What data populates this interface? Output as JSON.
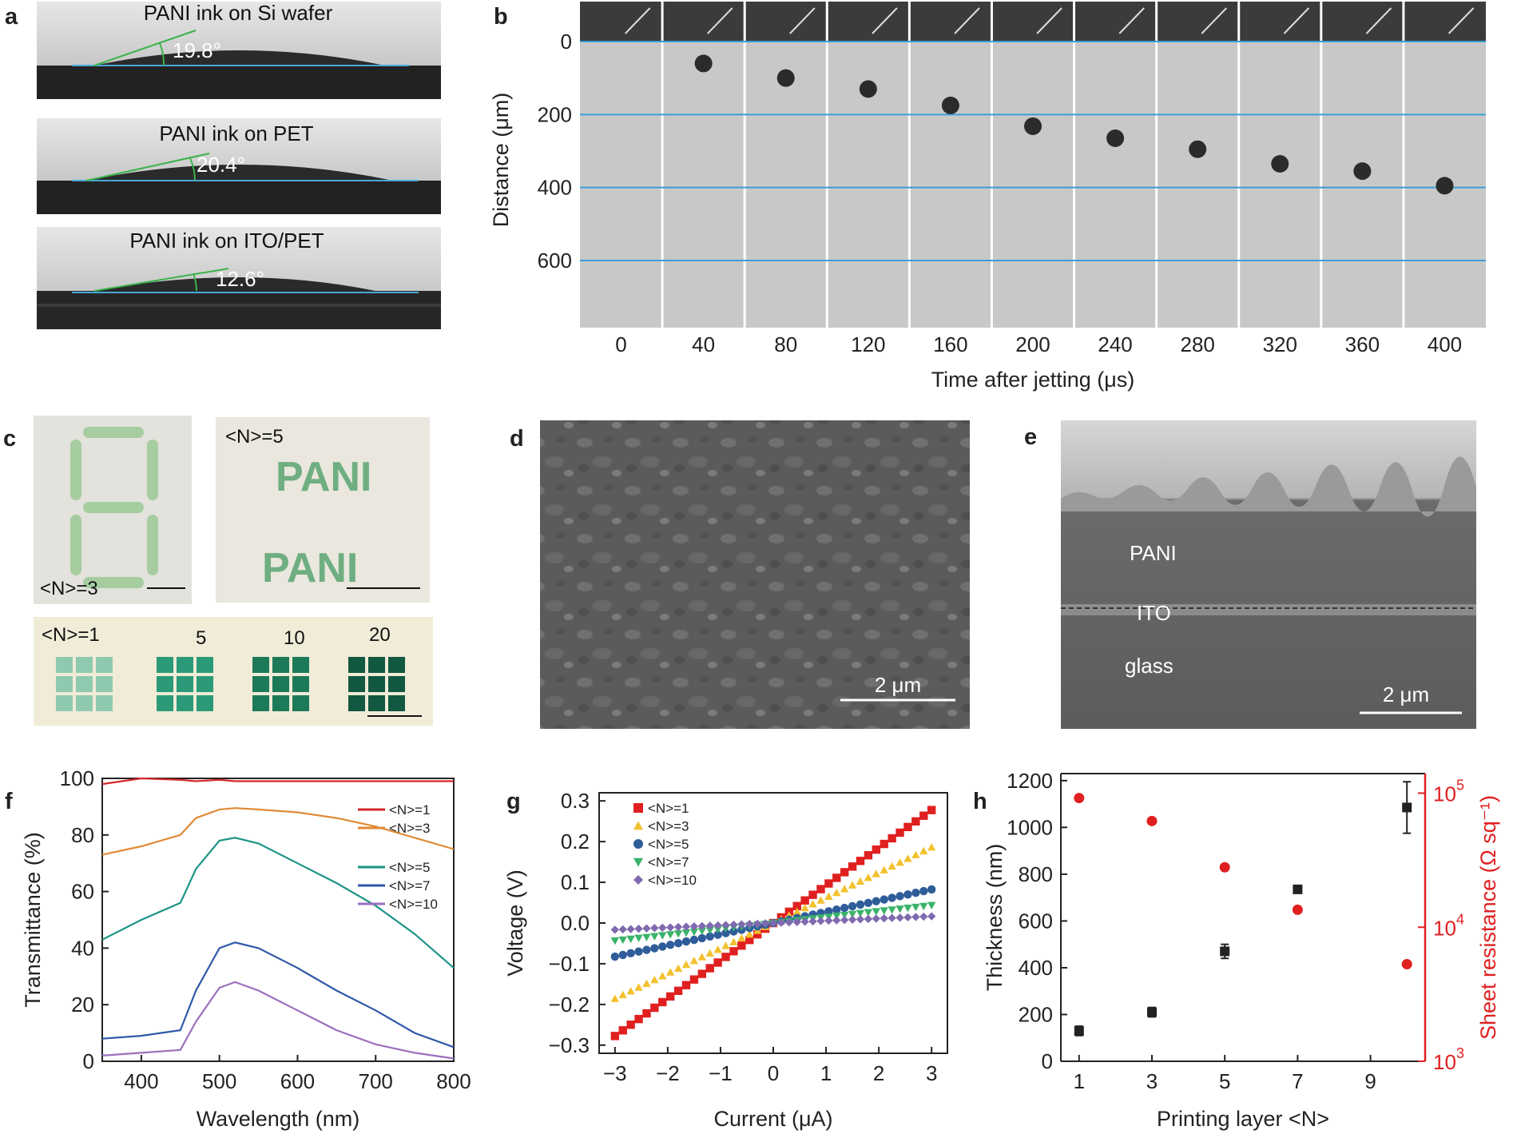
{
  "panel_letters": [
    "a",
    "b",
    "c",
    "d",
    "e",
    "f",
    "g",
    "h"
  ],
  "panel_a": {
    "images": [
      {
        "title": "PANI ink on Si wafer",
        "angle": "19.8°"
      },
      {
        "title": "PANI ink on PET",
        "angle": "20.4°"
      },
      {
        "title": "PANI ink on ITO/PET",
        "angle": "12.6°"
      }
    ]
  },
  "panel_c": {
    "labels": {
      "n3": "<N>=3",
      "n5": "<N>=5",
      "pani_text": "PANI",
      "n1": "<N>=1",
      "n_values": [
        "5",
        "10",
        "20"
      ]
    }
  },
  "panel_d": {
    "scale_bar": "2 μm"
  },
  "panel_e": {
    "layers": [
      "PANI",
      "ITO",
      "glass"
    ],
    "scale_bar": "2 μm"
  },
  "chart_data": [
    {
      "panel": "b",
      "type": "scatter",
      "xlabel": "Time after jetting (μs)",
      "ylabel": "Distance (μm)",
      "x_ticks": [
        "0",
        "40",
        "80",
        "120",
        "160",
        "200",
        "240",
        "280",
        "320",
        "360",
        "400"
      ],
      "y_ticks": [
        "0",
        "200",
        "400",
        "600"
      ],
      "x": [
        40,
        80,
        120,
        160,
        200,
        240,
        280,
        320,
        360,
        400
      ],
      "y": [
        60,
        100,
        130,
        175,
        232,
        265,
        295,
        335,
        355,
        395
      ]
    },
    {
      "panel": "f",
      "type": "line",
      "xlabel": "Wavelength (nm)",
      "ylabel": "Transmittance (%)",
      "xlim": [
        350,
        800
      ],
      "ylim": [
        0,
        100
      ],
      "x_ticks": [
        "400",
        "500",
        "600",
        "700",
        "800"
      ],
      "y_ticks": [
        "0",
        "20",
        "40",
        "60",
        "80",
        "100"
      ],
      "x": [
        350,
        400,
        450,
        470,
        500,
        520,
        550,
        600,
        650,
        700,
        750,
        800
      ],
      "series": [
        {
          "name": "<N>=1",
          "color": "#d62728",
          "values": [
            98,
            100,
            99.5,
            99,
            99.5,
            99,
            99,
            99,
            99,
            99,
            99,
            99
          ]
        },
        {
          "name": "<N>=3",
          "color": "#e08a35",
          "values": [
            73,
            76,
            80,
            86,
            89,
            89.5,
            89,
            88,
            86,
            83,
            79,
            75
          ]
        },
        {
          "name": "<N>=5",
          "color": "#1c9485",
          "values": [
            43,
            50,
            56,
            68,
            78,
            79,
            77,
            70,
            63,
            55,
            45,
            33
          ]
        },
        {
          "name": "<N>=7",
          "color": "#2e59a8",
          "values": [
            8,
            9,
            11,
            25,
            40,
            42,
            40,
            33,
            25,
            18,
            10,
            5
          ]
        },
        {
          "name": "<N>=10",
          "color": "#9b6fbe",
          "values": [
            2,
            3,
            4,
            14,
            26,
            28,
            25,
            18,
            11,
            6,
            3,
            1
          ]
        }
      ]
    },
    {
      "panel": "g",
      "type": "scatter",
      "xlabel": "Current (μA)",
      "ylabel": "Voltage (V)",
      "xlim": [
        -3.3,
        3.3
      ],
      "ylim": [
        -0.32,
        0.32
      ],
      "x_ticks": [
        "−3",
        "−2",
        "−1",
        "0",
        "1",
        "2",
        "3"
      ],
      "y_ticks": [
        "−0.3",
        "−0.2",
        "−0.1",
        "0.0",
        "0.1",
        "0.2",
        "0.3"
      ],
      "series": [
        {
          "name": "<N>=1",
          "color": "#e02020",
          "marker": "square",
          "slope": 0.0925
        },
        {
          "name": "<N>=3",
          "color": "#f2c12e",
          "marker": "triangle-up",
          "slope": 0.062
        },
        {
          "name": "<N>=5",
          "color": "#2f5d9a",
          "marker": "circle",
          "slope": 0.0275
        },
        {
          "name": "<N>=7",
          "color": "#3bb36a",
          "marker": "triangle-down",
          "slope": 0.0145
        },
        {
          "name": "<N>=10",
          "color": "#7f6ab0",
          "marker": "diamond",
          "slope": 0.0055
        }
      ]
    },
    {
      "panel": "h",
      "type": "scatter",
      "xlabel": "Printing layer <N>",
      "ylabel": "Thickness (nm)",
      "y2label": "Sheet resistance (Ω sq⁻¹)",
      "x_ticks": [
        "1",
        "3",
        "5",
        "7",
        "9"
      ],
      "y_ticks": [
        "0",
        "200",
        "400",
        "600",
        "800",
        "1000",
        "1200"
      ],
      "y2_ticks": [
        "10",
        "10",
        "10"
      ],
      "y2_tick_exponents": [
        "3",
        "4",
        "5"
      ],
      "y2_log": true,
      "xlim": [
        0.5,
        10.5
      ],
      "ylim": [
        0,
        1230
      ],
      "y2lim": [
        1000,
        140000
      ],
      "thickness": {
        "color": "#222222",
        "x": [
          1,
          3,
          5,
          7,
          10
        ],
        "values": [
          130,
          210,
          470,
          735,
          1085
        ],
        "errors": [
          20,
          20,
          30,
          15,
          110
        ]
      },
      "resistance": {
        "color": "#e02020",
        "x": [
          1,
          3,
          5,
          7,
          10
        ],
        "values": [
          92000,
          62000,
          28000,
          13500,
          5300
        ]
      }
    }
  ]
}
